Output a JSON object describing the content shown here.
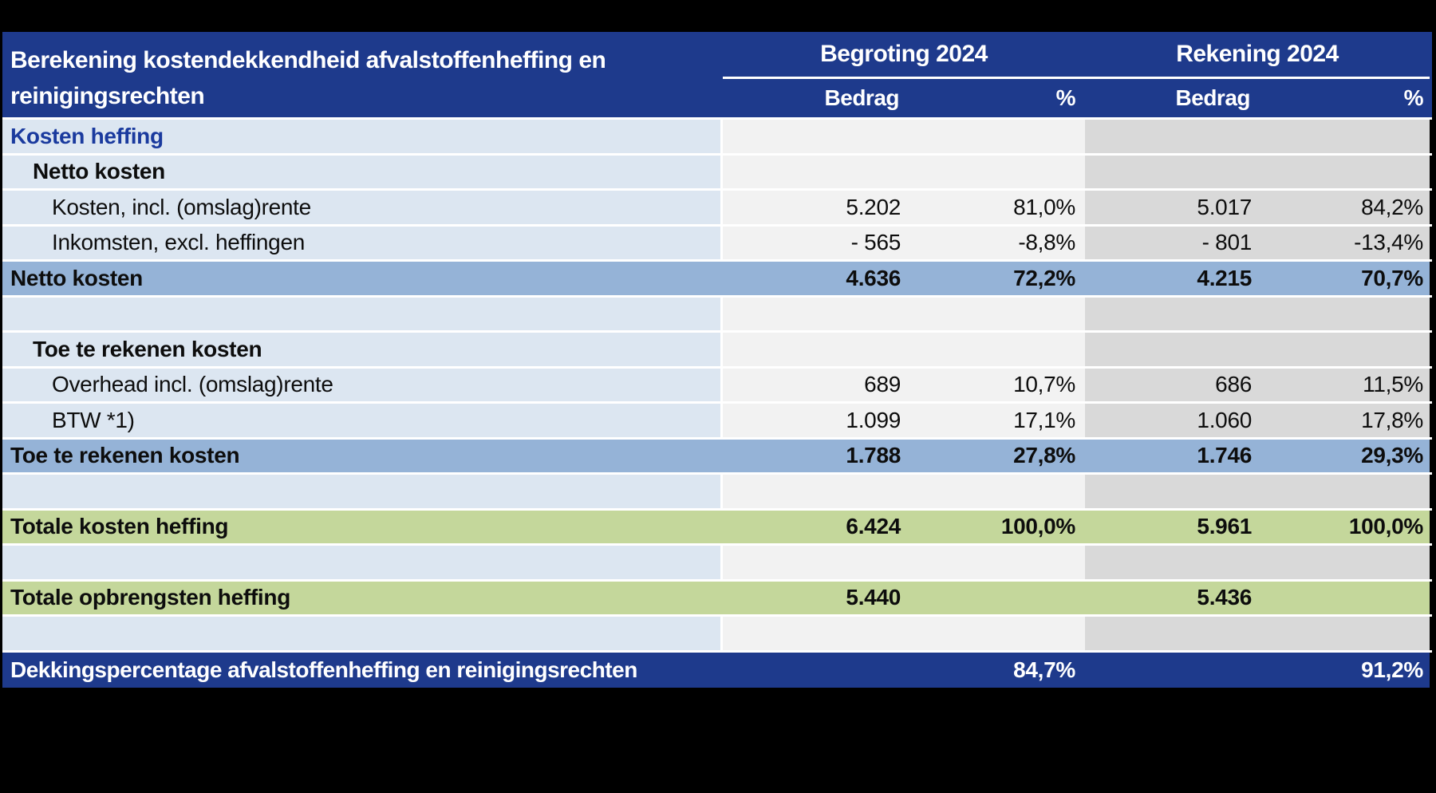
{
  "table": {
    "title_line1": "Berekening kostendekkendheid afvalstoffenheffing en",
    "title_line2": "reinigingsrechten",
    "column_groups": [
      {
        "label": "Begroting 2024"
      },
      {
        "label": "Rekening 2024"
      }
    ],
    "sub_headers": {
      "bedrag1": "Bedrag",
      "pct1": "%",
      "bedrag2": "Bedrag",
      "pct2": "%"
    },
    "rows": [
      {
        "type": "section",
        "label": "Kosten heffing",
        "values": [
          "",
          "",
          "",
          ""
        ]
      },
      {
        "type": "subheader",
        "label": "Netto kosten",
        "values": [
          "",
          "",
          "",
          ""
        ]
      },
      {
        "type": "data",
        "label": "Kosten, incl. (omslag)rente",
        "values": [
          "5.202",
          "81,0%",
          "5.017",
          "84,2%"
        ]
      },
      {
        "type": "data",
        "label": "Inkomsten, excl. heffingen",
        "values": [
          "- 565",
          "-8,8%",
          "- 801",
          "-13,4%"
        ]
      },
      {
        "type": "total-blue",
        "label": "Netto kosten",
        "values": [
          "4.636",
          "72,2%",
          "4.215",
          "70,7%"
        ]
      },
      {
        "type": "blank",
        "label": "",
        "values": [
          "",
          "",
          "",
          ""
        ]
      },
      {
        "type": "subheader",
        "label": "Toe te rekenen kosten",
        "values": [
          "",
          "",
          "",
          ""
        ]
      },
      {
        "type": "data",
        "label": "Overhead incl. (omslag)rente",
        "values": [
          "689",
          "10,7%",
          "686",
          "11,5%"
        ]
      },
      {
        "type": "data",
        "label": "BTW *1)",
        "values": [
          "1.099",
          "17,1%",
          "1.060",
          "17,8%"
        ]
      },
      {
        "type": "total-blue",
        "label": "Toe te rekenen kosten",
        "values": [
          "1.788",
          "27,8%",
          "1.746",
          "29,3%"
        ]
      },
      {
        "type": "blank",
        "label": "",
        "values": [
          "",
          "",
          "",
          ""
        ]
      },
      {
        "type": "total-green",
        "label": "Totale kosten heffing",
        "values": [
          "6.424",
          "100,0%",
          "5.961",
          "100,0%"
        ]
      },
      {
        "type": "blank",
        "label": "",
        "values": [
          "",
          "",
          "",
          ""
        ]
      },
      {
        "type": "total-green",
        "label": "Totale opbrengsten heffing",
        "values": [
          "5.440",
          "",
          "5.436",
          ""
        ]
      },
      {
        "type": "blank",
        "label": "",
        "values": [
          "",
          "",
          "",
          ""
        ]
      },
      {
        "type": "footer",
        "label": "Dekkingspercentage afvalstoffenheffing en reinigingsrechten",
        "values": [
          "",
          "84,7%",
          "",
          "91,2%"
        ]
      }
    ],
    "colors": {
      "header_bg": "#1e3a8c",
      "section_text": "#1a3a9e",
      "label_bg": "#dce6f1",
      "begroting_bg": "#f2f2f2",
      "rekening_bg": "#d9d9d9",
      "total_blue_bg": "#95b3d7",
      "total_green_bg": "#c4d79b",
      "canvas_bg": "#000000"
    }
  }
}
